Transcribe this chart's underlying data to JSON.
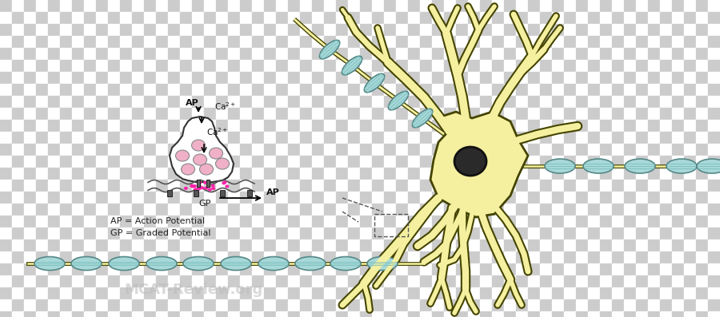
{
  "neuron_fill": "#f5f0a0",
  "neuron_edge": "#444400",
  "myelin_fill": "#a8d8d8",
  "myelin_edge": "#558888",
  "nucleus_fill": "#2a2a2a",
  "nucleus_edge": "#111111",
  "vesicle_fill": "#f0b0c8",
  "vesicle_edge": "#cc5580",
  "ca_dots_color": "#ff22aa",
  "synapse_bg": "#f8f8ff",
  "synapse_edge": "#222222",
  "dashed_box_color": "#444444",
  "text_color": "#222222",
  "watermark_color": "#bbbbbb",
  "legend_ap": "AP = Action Potential",
  "legend_gp": "GP = Graded Potential",
  "watermark": "MCAT-Review.org",
  "checker1": "#cccccc",
  "checker2": "#ffffff"
}
